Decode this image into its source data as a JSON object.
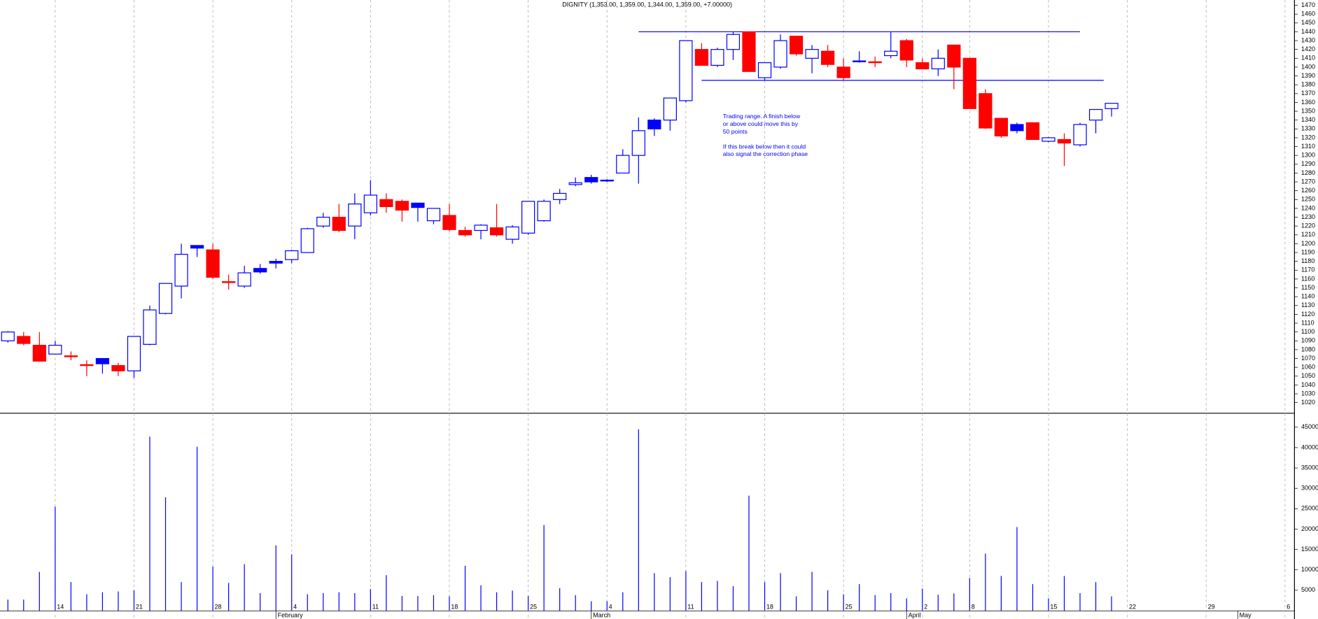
{
  "chart_data": {
    "type": "candlestick",
    "title": "DIGNITY (1,353.00, 1,359.00, 1,344.00, 1,359.00, +7.00000)",
    "categories": [
      null,
      null,
      null,
      null,
      null,
      null,
      null,
      null,
      null,
      null,
      null,
      null,
      null,
      null,
      null,
      null,
      null,
      null,
      null,
      null,
      null,
      null,
      null,
      null,
      null,
      null,
      null,
      null,
      null,
      null,
      null,
      null,
      null,
      null,
      null,
      null,
      null,
      null,
      null,
      null,
      null,
      null,
      null,
      null,
      null,
      null,
      null,
      null,
      null,
      null,
      null,
      null,
      null,
      null,
      null,
      null,
      null,
      null,
      null,
      null,
      null,
      null,
      null,
      null,
      null,
      null,
      null,
      null,
      null,
      null,
      null
    ],
    "open": [
      1090,
      1095,
      1085,
      1075,
      1073,
      1063,
      1070,
      1062,
      1056,
      1086,
      1121,
      1152,
      1198,
      1193,
      1157,
      1152,
      1172,
      1180,
      1182,
      1190,
      1220,
      1230,
      1220,
      1235,
      1250,
      1248,
      1246,
      1226,
      1232,
      1215,
      1215,
      1218,
      1205,
      1212,
      1226,
      1250,
      1267,
      1275,
      1271,
      1280,
      1300,
      1340,
      1340,
      1362,
      1420,
      1402,
      1420,
      1440,
      1388,
      1400,
      1435,
      1410,
      1418,
      1400,
      1407,
      1406,
      1413,
      1430,
      1405,
      1398,
      1425,
      1410,
      1370,
      1342,
      1335,
      1337,
      1316,
      1318,
      1312,
      1340,
      1353
    ],
    "high": [
      1101,
      1100,
      1100,
      1090,
      1078,
      1068,
      1070,
      1065,
      1095,
      1130,
      1155,
      1200,
      1198,
      1200,
      1165,
      1175,
      1177,
      1183,
      1193,
      1218,
      1235,
      1245,
      1257,
      1272,
      1257,
      1250,
      1246,
      1240,
      1245,
      1219,
      1222,
      1245,
      1221,
      1248,
      1250,
      1262,
      1275,
      1278,
      1273,
      1307,
      1343,
      1342,
      1365,
      1430,
      1427,
      1422,
      1440,
      1440,
      1405,
      1437,
      1435,
      1425,
      1425,
      1410,
      1418,
      1412,
      1440,
      1432,
      1410,
      1420,
      1425,
      1410,
      1375,
      1342,
      1337,
      1337,
      1321,
      1325,
      1337,
      1352,
      1359
    ],
    "low": [
      1088,
      1085,
      1067,
      1075,
      1068,
      1050,
      1053,
      1050,
      1048,
      1085,
      1120,
      1138,
      1185,
      1160,
      1148,
      1150,
      1166,
      1172,
      1178,
      1190,
      1218,
      1213,
      1205,
      1232,
      1235,
      1225,
      1225,
      1222,
      1214,
      1208,
      1205,
      1208,
      1200,
      1210,
      1225,
      1245,
      1265,
      1268,
      1270,
      1280,
      1268,
      1322,
      1328,
      1360,
      1402,
      1400,
      1408,
      1395,
      1385,
      1398,
      1413,
      1393,
      1400,
      1385,
      1405,
      1400,
      1410,
      1400,
      1398,
      1390,
      1375,
      1353,
      1330,
      1320,
      1325,
      1318,
      1315,
      1288,
      1310,
      1325,
      1344
    ],
    "close": [
      1100,
      1087,
      1067,
      1085,
      1072,
      1062,
      1064,
      1056,
      1095,
      1125,
      1155,
      1188,
      1195,
      1162,
      1156,
      1167,
      1168,
      1178,
      1192,
      1217,
      1230,
      1215,
      1245,
      1255,
      1242,
      1238,
      1241,
      1240,
      1216,
      1210,
      1221,
      1210,
      1219,
      1248,
      1248,
      1257,
      1269,
      1270,
      1272,
      1300,
      1328,
      1330,
      1365,
      1430,
      1402,
      1420,
      1437,
      1395,
      1405,
      1430,
      1415,
      1420,
      1403,
      1388,
      1407,
      1405,
      1418,
      1408,
      1398,
      1410,
      1400,
      1353,
      1331,
      1322,
      1328,
      1318,
      1320,
      1314,
      1335,
      1352,
      1359
    ],
    "body_colors": [
      "#ffffff",
      "#ff0000",
      "#ff0000",
      "#ffffff",
      "#ff0000",
      "#ff0000",
      "#0000ff",
      "#ff0000",
      "#ffffff",
      "#ffffff",
      "#ffffff",
      "#ffffff",
      "#0000ff",
      "#ff0000",
      "#ff0000",
      "#ffffff",
      "#0000ff",
      "#0000ff",
      "#ffffff",
      "#ffffff",
      "#ffffff",
      "#ff0000",
      "#ffffff",
      "#ffffff",
      "#ff0000",
      "#ff0000",
      "#0000ff",
      "#ffffff",
      "#ff0000",
      "#ff0000",
      "#ffffff",
      "#ff0000",
      "#ffffff",
      "#ffffff",
      "#ffffff",
      "#ffffff",
      "#ffffff",
      "#0000ff",
      "#ffffff",
      "#ffffff",
      "#ffffff",
      "#0000ff",
      "#ffffff",
      "#ffffff",
      "#ff0000",
      "#ffffff",
      "#ffffff",
      "#ff0000",
      "#ffffff",
      "#ffffff",
      "#ff0000",
      "#ffffff",
      "#ff0000",
      "#ff0000",
      "#0000ff",
      "#ff0000",
      "#ffffff",
      "#ff0000",
      "#ff0000",
      "#ffffff",
      "#ff0000",
      "#ff0000",
      "#ff0000",
      "#ff0000",
      "#0000ff",
      "#ff0000",
      "#ffffff",
      "#ff0000",
      "#ffffff",
      "#ffffff",
      "#ffffff"
    ],
    "outline_color": "#0000ff",
    "volume": [
      2700,
      2700,
      9500,
      25500,
      7000,
      4000,
      4500,
      4700,
      5000,
      42700,
      27800,
      7000,
      40200,
      10800,
      6800,
      11400,
      4300,
      16000,
      13800,
      4000,
      4300,
      4500,
      4300,
      5300,
      8700,
      3600,
      3600,
      3800,
      3500,
      11000,
      6200,
      4500,
      4900,
      3600,
      21000,
      5500,
      3800,
      2300,
      2300,
      4500,
      44500,
      9200,
      8200,
      9700,
      7000,
      7300,
      6000,
      28200,
      7000,
      9200,
      3500,
      9500,
      5000,
      4000,
      6500,
      3800,
      4300,
      3000,
      5400,
      3900,
      4200,
      8000,
      14000,
      8500,
      20500,
      6500,
      3000,
      8500,
      4300,
      7000,
      3500
    ],
    "volume_color": "#0000ff",
    "xlim": [
      -0.5,
      81.6
    ],
    "ylim": [
      1008,
      1476
    ],
    "volume_ylim": [
      0,
      47400
    ],
    "xticks": [
      {
        "value": 3,
        "label": "14"
      },
      {
        "value": 8,
        "label": "21"
      },
      {
        "value": 13,
        "label": "28"
      },
      {
        "value": 18,
        "label": "4"
      },
      {
        "value": 23,
        "label": "11"
      },
      {
        "value": 28,
        "label": "18"
      },
      {
        "value": 33,
        "label": "25"
      },
      {
        "value": 38,
        "label": "4"
      },
      {
        "value": 43,
        "label": "11"
      },
      {
        "value": 48,
        "label": "18"
      },
      {
        "value": 53,
        "label": "25"
      },
      {
        "value": 58,
        "label": "2"
      },
      {
        "value": 61,
        "label": "8"
      },
      {
        "value": 66,
        "label": "15"
      },
      {
        "value": 71,
        "label": "22"
      },
      {
        "value": 76,
        "label": "29"
      },
      {
        "value": 81,
        "label": "6"
      }
    ],
    "months": [
      {
        "value": 17,
        "label": "February"
      },
      {
        "value": 37,
        "label": "March"
      },
      {
        "value": 57,
        "label": "April"
      },
      {
        "value": 78,
        "label": "May"
      }
    ],
    "yticks": [
      1020,
      1030,
      1040,
      1050,
      1060,
      1070,
      1080,
      1090,
      1100,
      1110,
      1120,
      1130,
      1140,
      1150,
      1160,
      1170,
      1180,
      1190,
      1200,
      1210,
      1220,
      1230,
      1240,
      1250,
      1260,
      1270,
      1280,
      1290,
      1300,
      1310,
      1320,
      1330,
      1340,
      1350,
      1360,
      1370,
      1380,
      1390,
      1400,
      1410,
      1420,
      1430,
      1440,
      1450,
      1460,
      1470
    ],
    "volume_yticks": [
      5000,
      10000,
      15000,
      20000,
      25000,
      30000,
      35000,
      40000,
      45000
    ],
    "lines": [
      {
        "x": [
          40,
          68
        ],
        "y": [
          1440,
          1440
        ]
      },
      {
        "x": [
          44,
          69.5
        ],
        "y": [
          1385,
          1385
        ]
      }
    ],
    "line_color": "#0000ff",
    "annotation": [
      "Trading range. A finish below",
      "or above could move this by",
      "50 points",
      "If this break below then it could",
      "also signal the correction phase"
    ]
  }
}
